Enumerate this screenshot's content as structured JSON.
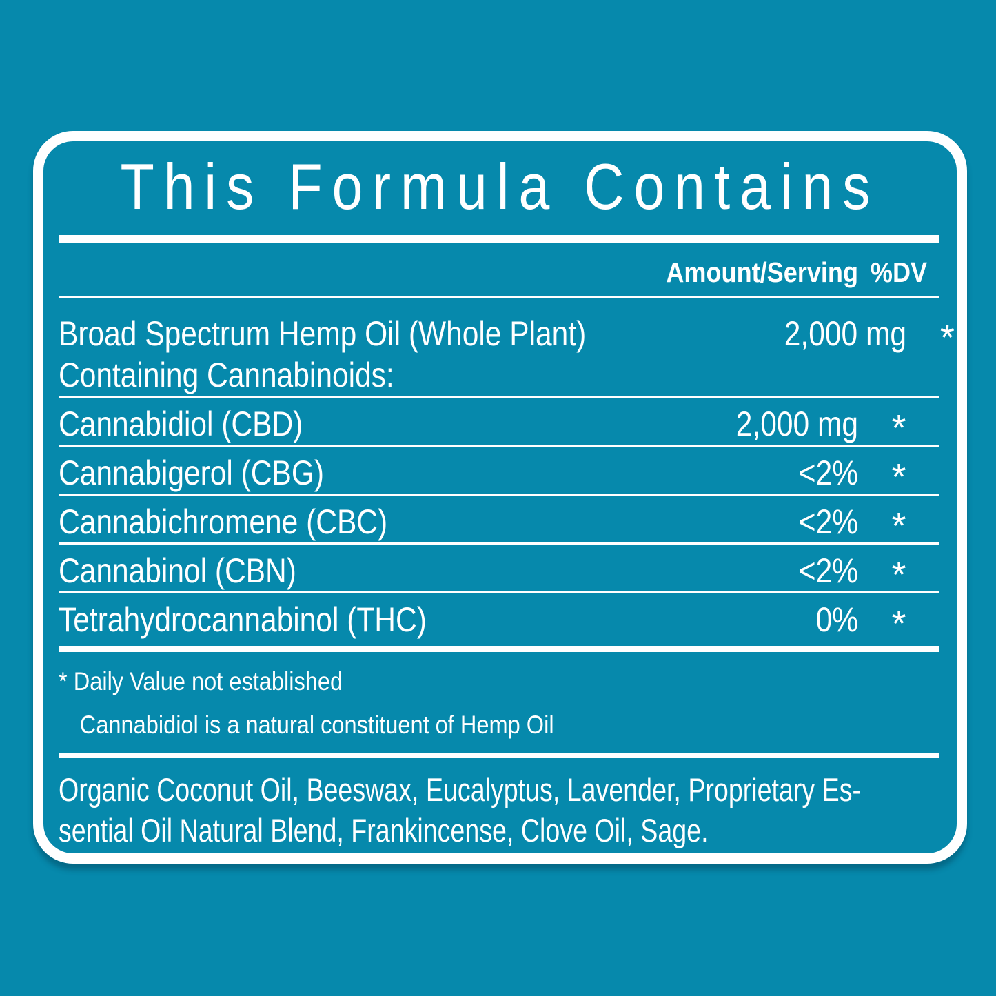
{
  "colors": {
    "background": "#0689AC",
    "foreground": "#FFFFFF"
  },
  "label": {
    "title": "This Formula Contains",
    "columns": {
      "amount": "Amount/Serving",
      "dv": "%DV"
    },
    "rows": [
      {
        "name": "Broad Spectrum Hemp Oil (Whole Plant)",
        "name_line2": "Containing Cannabinoids:",
        "amount": "2,000 mg",
        "dv": "*"
      },
      {
        "name": "Cannabidiol (CBD)",
        "amount": "2,000 mg",
        "dv": "*"
      },
      {
        "name": "Cannabigerol (CBG)",
        "amount": "<2%",
        "dv": "*"
      },
      {
        "name": "Cannabichromene (CBC)",
        "amount": "<2%",
        "dv": "*"
      },
      {
        "name": "Cannabinol (CBN)",
        "amount": "<2%",
        "dv": "*"
      },
      {
        "name": "Tetrahydrocannabinol (THC)",
        "amount": "0%",
        "dv": "*"
      }
    ],
    "footnotes": [
      "* Daily Value not established",
      "Cannabidiol is a natural constituent of Hemp Oil"
    ],
    "other_ingredients_lines": [
      "Organic Coconut Oil, Beeswax, Eucalyptus, Lavender, Proprietary Es-",
      "sential Oil Natural Blend, Frankincense, Clove Oil, Sage."
    ]
  }
}
